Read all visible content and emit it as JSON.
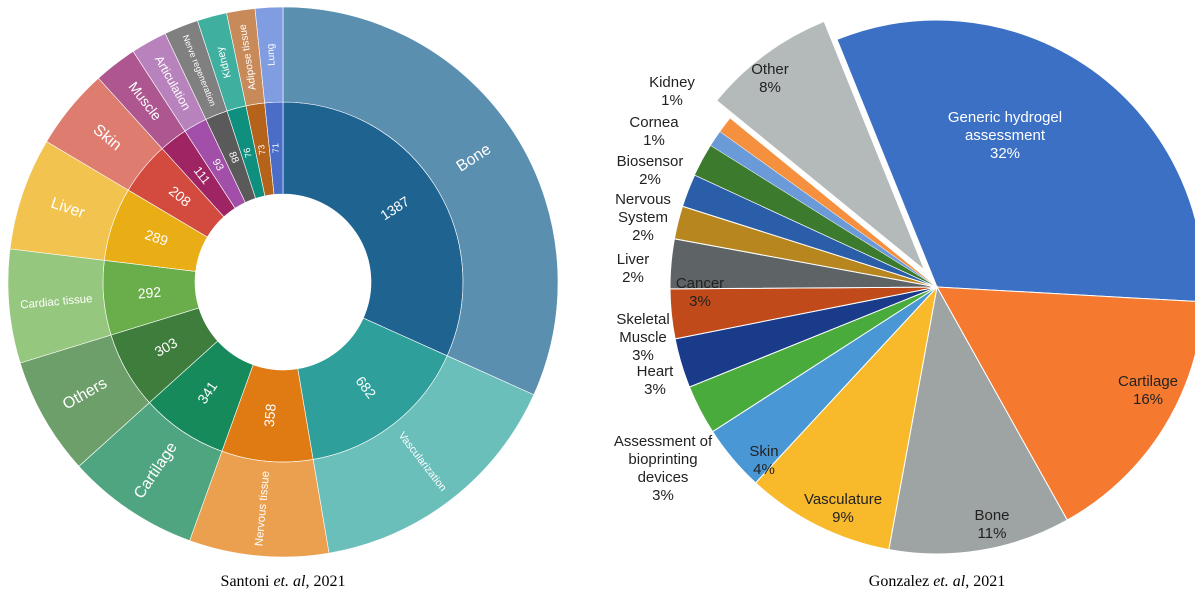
{
  "chart_data": [
    {
      "type": "sunburst",
      "categories": [
        "Bone",
        "Vascularization",
        "Nervous tissue",
        "Cartilage",
        "Others",
        "Cardiac tissue",
        "Liver",
        "Skin",
        "Muscle",
        "Articulation",
        "Nerve regeneration",
        "Kidney",
        "Adipose tissue",
        "Lung"
      ],
      "values": [
        1387,
        682,
        358,
        341,
        303,
        292,
        289,
        208,
        111,
        93,
        88,
        76,
        73,
        71
      ],
      "inner_colors": [
        "#1f6391",
        "#2e9f9a",
        "#e07b14",
        "#178a5c",
        "#3e7d3c",
        "#6aad4b",
        "#e9ad15",
        "#d34a3e",
        "#9e2463",
        "#a14fa8",
        "#5a5a5a",
        "#0f8f7d",
        "#b5621b",
        "#4a6dc8"
      ],
      "outer_colors": [
        "#5b8fb0",
        "#6bbfbb",
        "#eba050",
        "#4fa57f",
        "#6d9f6b",
        "#96c77e",
        "#f2c34e",
        "#df7c70",
        "#ad5690",
        "#b883bc",
        "#808080",
        "#3fb0a0",
        "#c98a5a",
        "#7f9de0"
      ],
      "caption": [
        "Santoni ",
        "et. al",
        ", 2021"
      ]
    },
    {
      "type": "pie",
      "categories": [
        [
          "Generic hydrogel",
          "assessment"
        ],
        [
          "Cartilage"
        ],
        [
          "Bone"
        ],
        [
          "Vasculature"
        ],
        [
          "Skin"
        ],
        [
          "Assessment of",
          "bioprinting",
          "devices"
        ],
        [
          "Heart"
        ],
        [
          "Skeletal",
          "Muscle"
        ],
        [
          "Cancer"
        ],
        [
          "Liver"
        ],
        [
          "Nervous",
          "System"
        ],
        [
          "Biosensor"
        ],
        [
          "Cornea"
        ],
        [
          "Kidney"
        ],
        [
          "Other"
        ]
      ],
      "values": [
        32,
        16,
        11,
        9,
        4,
        3,
        3,
        3,
        3,
        2,
        2,
        2,
        1,
        1,
        8
      ],
      "value_labels": [
        "32%",
        "16%",
        "11%",
        "9%",
        "4%",
        "3%",
        "3%",
        "3%",
        "3%",
        "2%",
        "2%",
        "2%",
        "1%",
        "1%",
        "8%"
      ],
      "colors": [
        "#3b70c4",
        "#f57a30",
        "#9ea3a3",
        "#f8b92a",
        "#4a97d5",
        "#4aab3d",
        "#1a3a8a",
        "#c04a1a",
        "#5e6466",
        "#b8861e",
        "#2a5ea8",
        "#3c7a2e",
        "#6a9ad8",
        "#f5903e",
        "#b4bab9"
      ],
      "caption": [
        "Gonzalez ",
        "et. al",
        ", 2021"
      ]
    }
  ]
}
